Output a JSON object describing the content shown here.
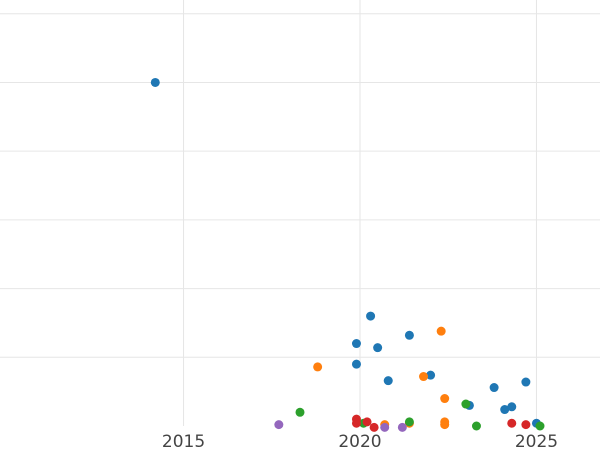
{
  "chart_data": {
    "type": "scatter",
    "title": "",
    "xlabel": "",
    "ylabel": "",
    "xlim": [
      2009.8,
      2026.8
    ],
    "ylim": [
      0,
      31
    ],
    "x_ticks": [
      2015,
      2020,
      2025
    ],
    "x_tick_labels": [
      "2015",
      "2020",
      "2025"
    ],
    "y_gridlines": [
      5,
      10,
      15,
      20,
      25,
      30
    ],
    "grid": true,
    "legend": "none",
    "series": [
      {
        "color": "#1f77b4",
        "points": [
          {
            "x": 2014.2,
            "y": 25.0
          },
          {
            "x": 2020.3,
            "y": 8.0
          },
          {
            "x": 2019.9,
            "y": 6.0
          },
          {
            "x": 2020.5,
            "y": 5.7
          },
          {
            "x": 2021.4,
            "y": 6.6
          },
          {
            "x": 2019.9,
            "y": 4.5
          },
          {
            "x": 2020.8,
            "y": 3.3
          },
          {
            "x": 2022.0,
            "y": 3.7
          },
          {
            "x": 2023.8,
            "y": 2.8
          },
          {
            "x": 2024.7,
            "y": 3.2
          },
          {
            "x": 2023.1,
            "y": 1.5
          },
          {
            "x": 2024.1,
            "y": 1.2
          },
          {
            "x": 2024.3,
            "y": 1.4
          },
          {
            "x": 2025.0,
            "y": 0.2
          }
        ]
      },
      {
        "color": "#ff7f0e",
        "points": [
          {
            "x": 2022.3,
            "y": 6.9
          },
          {
            "x": 2018.8,
            "y": 4.3
          },
          {
            "x": 2021.8,
            "y": 3.6
          },
          {
            "x": 2022.4,
            "y": 2.0
          },
          {
            "x": 2020.7,
            "y": 0.1
          },
          {
            "x": 2021.4,
            "y": 0.2
          },
          {
            "x": 2022.4,
            "y": 0.1
          },
          {
            "x": 2022.4,
            "y": 0.3
          }
        ]
      },
      {
        "color": "#2ca02c",
        "points": [
          {
            "x": 2018.3,
            "y": 1.0
          },
          {
            "x": 2023.0,
            "y": 1.6
          },
          {
            "x": 2021.4,
            "y": 0.3
          },
          {
            "x": 2023.3,
            "y": 0.0
          },
          {
            "x": 2025.1,
            "y": 0.0
          },
          {
            "x": 2020.1,
            "y": 0.2
          }
        ]
      },
      {
        "color": "#d62728",
        "points": [
          {
            "x": 2019.9,
            "y": 0.5
          },
          {
            "x": 2020.2,
            "y": 0.3
          },
          {
            "x": 2019.9,
            "y": 0.2
          },
          {
            "x": 2020.4,
            "y": -0.1
          },
          {
            "x": 2024.3,
            "y": 0.2
          },
          {
            "x": 2024.7,
            "y": 0.1
          }
        ]
      },
      {
        "color": "#9467bd",
        "points": [
          {
            "x": 2017.7,
            "y": 0.1
          },
          {
            "x": 2020.7,
            "y": -0.1
          },
          {
            "x": 2021.2,
            "y": -0.1
          }
        ]
      }
    ]
  }
}
